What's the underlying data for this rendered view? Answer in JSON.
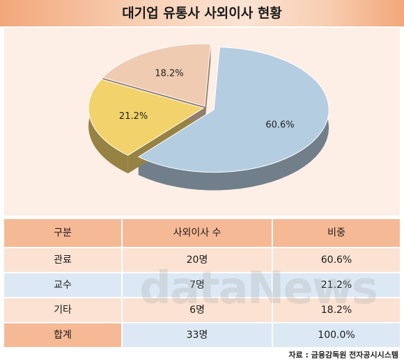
{
  "title": "대기업 유통사 사외이사 현황",
  "chart_data": {
    "type": "pie",
    "categories": [
      "관료",
      "교수",
      "기타"
    ],
    "values": [
      60.6,
      21.2,
      18.2
    ],
    "labels": [
      "60.6%",
      "21.2%",
      "18.2%"
    ],
    "colors": [
      "#b5cde0",
      "#f2d36b",
      "#efcbb1"
    ],
    "legend_position": "bottom"
  },
  "legend": [
    {
      "label": "관료",
      "color": "#b5cde0"
    },
    {
      "label": "교수",
      "color": "#f2d36b"
    },
    {
      "label": "기타",
      "color": "#efcbb1"
    }
  ],
  "table": {
    "headers": [
      "구분",
      "사외이사 수",
      "비중"
    ],
    "rows": [
      [
        "관료",
        "20명",
        "60.6%"
      ],
      [
        "교수",
        "7명",
        "21.2%"
      ],
      [
        "기타",
        "6명",
        "18.2%"
      ]
    ],
    "total": [
      "합계",
      "33명",
      "100.0%"
    ]
  },
  "watermark": "dataNews",
  "source": "자료 : 금융감독원 전자공시시스템"
}
